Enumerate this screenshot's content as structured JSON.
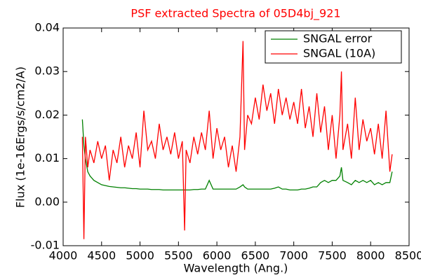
{
  "chart_data": {
    "type": "line",
    "title": "PSF extracted Spectra of 05D4bj_921",
    "title_color": "#ff0000",
    "xlabel": "Wavelength (Ang.)",
    "ylabel": "Flux (1e-16Ergs/s/cm2/A)",
    "x": [
      4250,
      4270,
      4290,
      4320,
      4350,
      4400,
      4450,
      4500,
      4550,
      4600,
      4650,
      4700,
      4750,
      4800,
      4850,
      4900,
      4950,
      5000,
      5050,
      5100,
      5150,
      5200,
      5250,
      5300,
      5350,
      5400,
      5450,
      5500,
      5550,
      5580,
      5600,
      5650,
      5700,
      5750,
      5800,
      5850,
      5900,
      5950,
      6000,
      6050,
      6100,
      6150,
      6200,
      6250,
      6300,
      6340,
      6360,
      6400,
      6450,
      6500,
      6550,
      6600,
      6650,
      6700,
      6750,
      6800,
      6850,
      6900,
      6950,
      7000,
      7050,
      7100,
      7150,
      7200,
      7250,
      7300,
      7350,
      7400,
      7450,
      7500,
      7550,
      7600,
      7620,
      7640,
      7700,
      7750,
      7800,
      7850,
      7900,
      7950,
      8000,
      8050,
      8100,
      8150,
      8200,
      8250,
      8280
    ],
    "series": [
      {
        "name": "SNGAL error",
        "color": "#008000",
        "values": [
          0.019,
          0.013,
          0.01,
          0.007,
          0.006,
          0.005,
          0.0045,
          0.004,
          0.0038,
          0.0036,
          0.0035,
          0.0034,
          0.0033,
          0.0033,
          0.0032,
          0.0031,
          0.0031,
          0.003,
          0.003,
          0.003,
          0.0029,
          0.0029,
          0.0029,
          0.0028,
          0.0028,
          0.0028,
          0.0028,
          0.0028,
          0.0028,
          0.0028,
          0.0028,
          0.0028,
          0.0029,
          0.0029,
          0.003,
          0.003,
          0.005,
          0.003,
          0.003,
          0.003,
          0.003,
          0.003,
          0.003,
          0.003,
          0.0035,
          0.004,
          0.0035,
          0.003,
          0.003,
          0.003,
          0.003,
          0.003,
          0.003,
          0.003,
          0.0032,
          0.0035,
          0.003,
          0.003,
          0.0028,
          0.0028,
          0.0028,
          0.003,
          0.003,
          0.0032,
          0.0035,
          0.0035,
          0.0045,
          0.005,
          0.0045,
          0.005,
          0.005,
          0.006,
          0.008,
          0.005,
          0.0045,
          0.004,
          0.005,
          0.0045,
          0.005,
          0.0045,
          0.005,
          0.004,
          0.0045,
          0.004,
          0.0045,
          0.0045,
          0.007
        ]
      },
      {
        "name": "SNGAL (10A)",
        "color": "#ff0000",
        "values": [
          0.015,
          -0.0085,
          0.015,
          0.008,
          0.012,
          0.009,
          0.014,
          0.01,
          0.013,
          0.005,
          0.012,
          0.009,
          0.015,
          0.008,
          0.013,
          0.01,
          0.016,
          0.008,
          0.021,
          0.012,
          0.014,
          0.01,
          0.018,
          0.012,
          0.015,
          0.011,
          0.016,
          0.01,
          0.014,
          -0.0065,
          0.012,
          0.009,
          0.015,
          0.011,
          0.016,
          0.012,
          0.021,
          0.01,
          0.017,
          0.012,
          0.015,
          0.008,
          0.013,
          0.007,
          0.015,
          0.037,
          0.012,
          0.02,
          0.018,
          0.024,
          0.019,
          0.027,
          0.021,
          0.025,
          0.018,
          0.026,
          0.02,
          0.024,
          0.019,
          0.023,
          0.018,
          0.026,
          0.017,
          0.022,
          0.015,
          0.025,
          0.016,
          0.022,
          0.012,
          0.02,
          0.01,
          0.02,
          0.03,
          0.012,
          0.018,
          0.01,
          0.024,
          0.012,
          0.019,
          0.014,
          0.017,
          0.011,
          0.018,
          0.01,
          0.021,
          0.007,
          0.011
        ]
      }
    ],
    "xlim": [
      4000,
      8500
    ],
    "xticks": [
      4000,
      4500,
      5000,
      5500,
      6000,
      6500,
      7000,
      7500,
      8000,
      8500
    ],
    "ylim": [
      -0.01,
      0.04
    ],
    "yticks": [
      -0.01,
      {
        "value": 0,
        "label": "0.00"
      },
      0.01,
      0.02,
      0.03,
      0.04
    ],
    "legend": "upper right"
  }
}
